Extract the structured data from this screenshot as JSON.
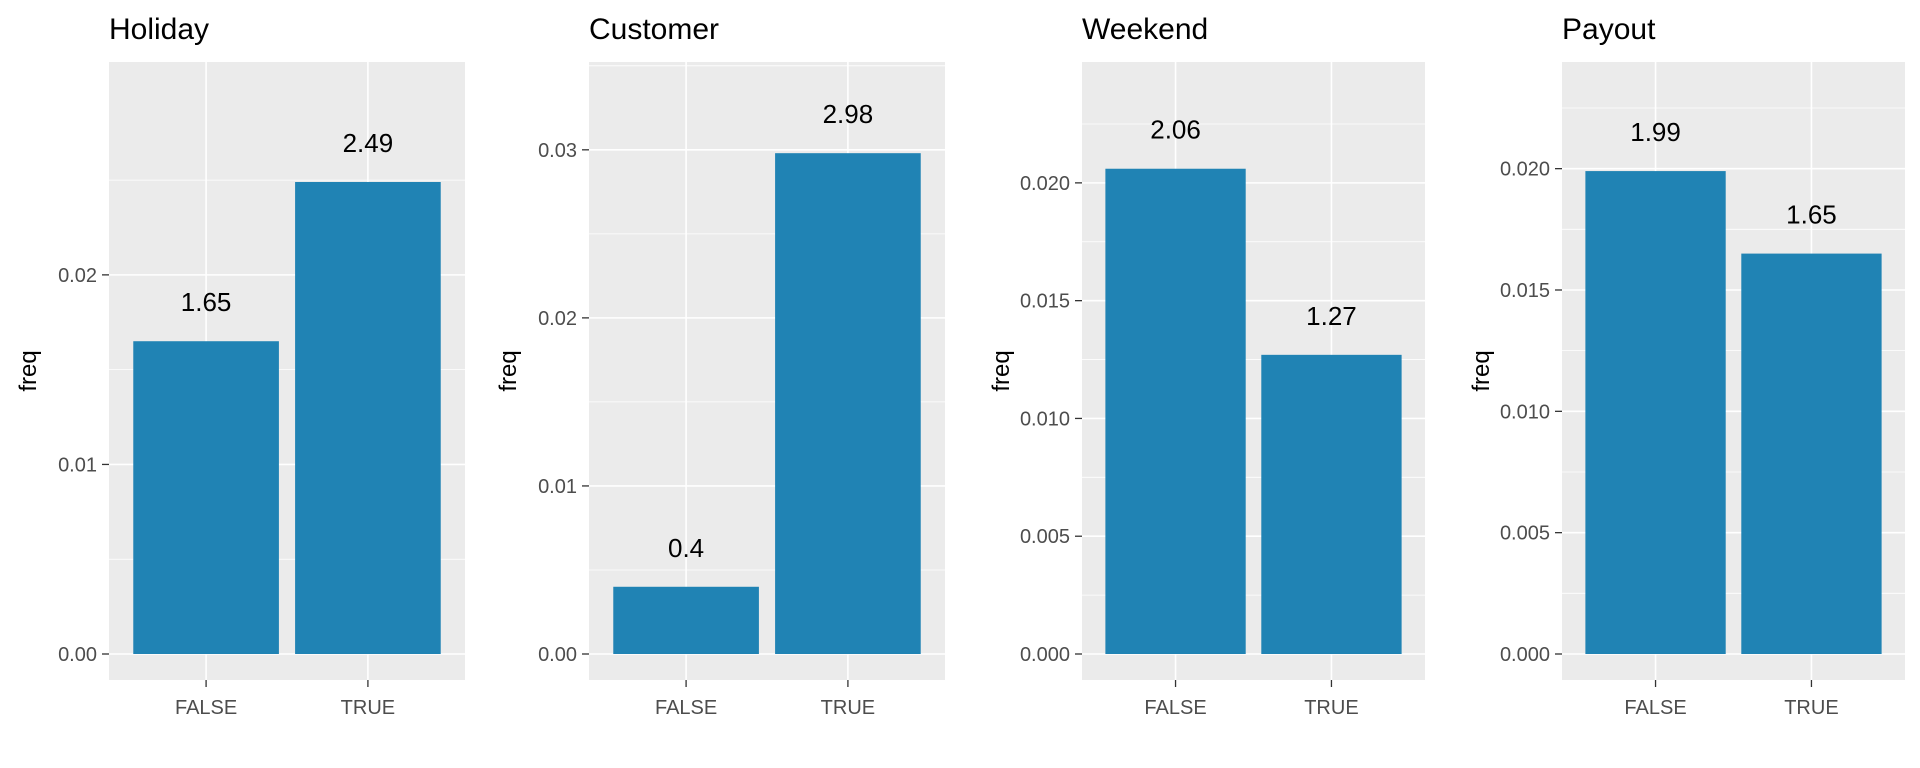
{
  "colors": {
    "bar": "#2083b4",
    "panel_background": "#ebebeb",
    "grid": "#ffffff"
  },
  "chart_data": [
    {
      "type": "bar",
      "title": "Holiday",
      "xlabel": "",
      "ylabel": "freq",
      "categories": [
        "FALSE",
        "TRUE"
      ],
      "values": [
        0.0165,
        0.0249
      ],
      "labels": [
        "1.65",
        "2.49"
      ],
      "ylim": [
        0,
        0.0297
      ],
      "yticks": [
        0.0,
        0.01,
        0.02
      ],
      "ytick_labels": [
        "0.00",
        "0.01",
        "0.02"
      ],
      "grid": true,
      "legend": "none"
    },
    {
      "type": "bar",
      "title": "Customer",
      "xlabel": "",
      "ylabel": "freq",
      "categories": [
        "FALSE",
        "TRUE"
      ],
      "values": [
        0.004,
        0.0298
      ],
      "labels": [
        "0.4",
        "2.98"
      ],
      "ylim": [
        0,
        0.0335
      ],
      "yticks": [
        0.0,
        0.01,
        0.02,
        0.03
      ],
      "ytick_labels": [
        "0.00",
        "0.01",
        "0.02",
        "0.03"
      ],
      "grid": true,
      "legend": "none"
    },
    {
      "type": "bar",
      "title": "Weekend",
      "xlabel": "",
      "ylabel": "freq",
      "categories": [
        "FALSE",
        "TRUE"
      ],
      "values": [
        0.0206,
        0.0127
      ],
      "labels": [
        "2.06",
        "1.27"
      ],
      "ylim": [
        0,
        0.0239
      ],
      "yticks": [
        0.0,
        0.005,
        0.01,
        0.015,
        0.02
      ],
      "ytick_labels": [
        "0.000",
        "0.005",
        "0.010",
        "0.015",
        "0.020"
      ],
      "grid": true,
      "legend": "none"
    },
    {
      "type": "bar",
      "title": "Payout",
      "xlabel": "",
      "ylabel": "freq",
      "categories": [
        "FALSE",
        "TRUE"
      ],
      "values": [
        0.0199,
        0.0165
      ],
      "labels": [
        "1.99",
        "1.65"
      ],
      "ylim": [
        0,
        0.0232
      ],
      "yticks": [
        0.0,
        0.005,
        0.01,
        0.015,
        0.02
      ],
      "ytick_labels": [
        "0.000",
        "0.005",
        "0.010",
        "0.015",
        "0.020"
      ],
      "grid": true,
      "legend": "none"
    }
  ]
}
